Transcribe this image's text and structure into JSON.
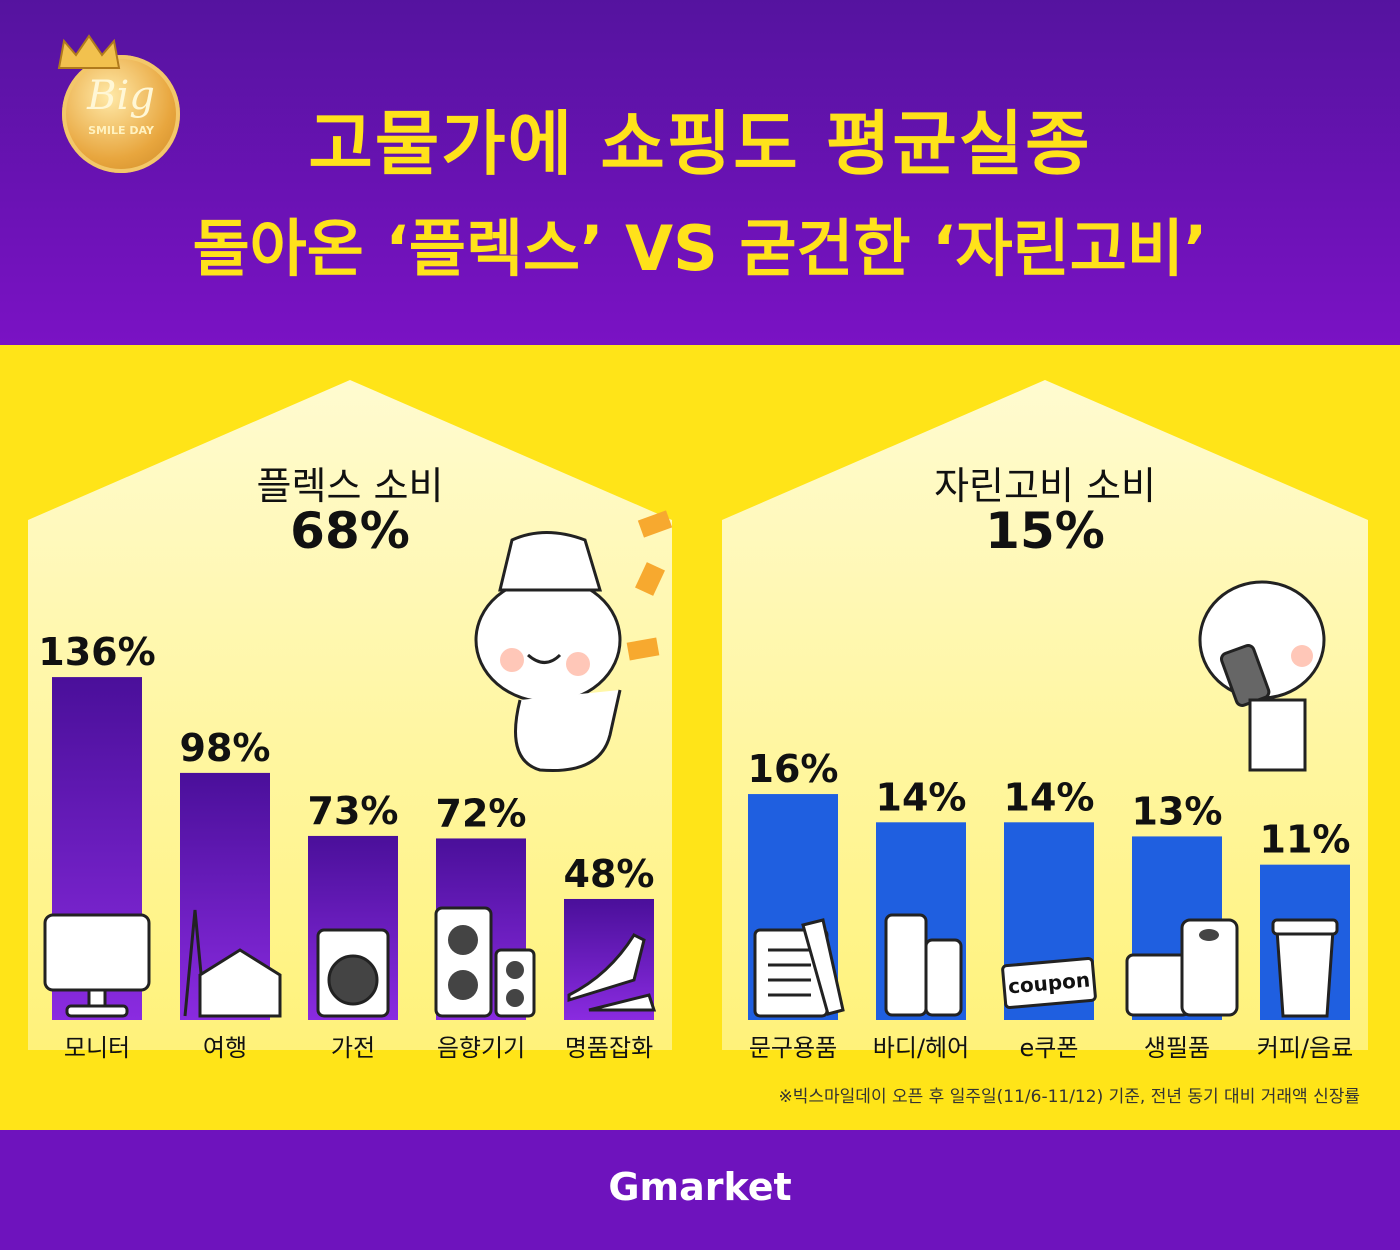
{
  "header": {
    "badge_main": "Big",
    "badge_sub": "SMILE DAY",
    "title_line1": "고물가에 쇼핑도 평균실종",
    "title_line2": "돌아온 ‘플렉스’ VS 굳건한 ‘자린고비’"
  },
  "colors": {
    "purple_bar": "#6a1fc8",
    "blue_bar": "#1f5fe0",
    "yellow_bg": "#ffe418",
    "header_purple": "#5a12a8"
  },
  "chart_data": [
    {
      "type": "bar",
      "title": "플렉스 소비",
      "summary": "68%",
      "categories": [
        "모니터",
        "여행",
        "가전",
        "음향기기",
        "명품잡화"
      ],
      "values": [
        136,
        98,
        73,
        72,
        48
      ],
      "labels": [
        "136%",
        "98%",
        "73%",
        "72%",
        "48%"
      ],
      "icons": [
        "monitor-icon",
        "travel-icon",
        "washer-icon",
        "speaker-icon",
        "shoes-icon"
      ],
      "ylim": [
        0,
        140
      ]
    },
    {
      "type": "bar",
      "title": "자린고비 소비",
      "summary": "15%",
      "categories": [
        "문구용품",
        "바디/헤어",
        "e쿠폰",
        "생필품",
        "커피/음료"
      ],
      "values": [
        16,
        14,
        14,
        13,
        11
      ],
      "labels": [
        "16%",
        "14%",
        "14%",
        "13%",
        "11%"
      ],
      "icons": [
        "stationery-icon",
        "bottle-icon",
        "coupon-icon",
        "tissue-icon",
        "coffee-icon"
      ],
      "coupon_text": "coupon",
      "ylim": [
        0,
        16.5
      ]
    }
  ],
  "footnote": "※빅스마일데이 오픈 후 일주일(11/6-11/12) 기준, 전년 동기 대비 거래액 신장률",
  "footer": {
    "brand": "Gmarket"
  }
}
